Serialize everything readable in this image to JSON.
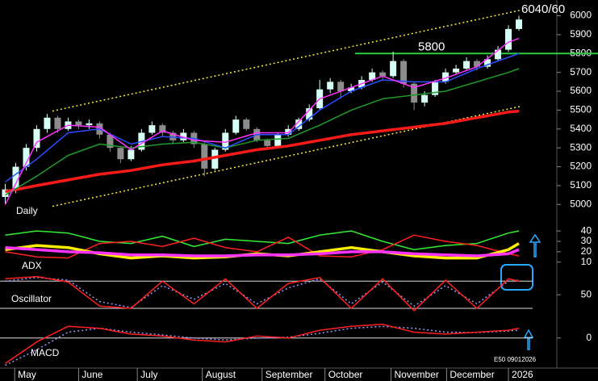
{
  "chart_data": [
    {
      "type": "candlestick",
      "label": "Daily",
      "annotation": "6040/60",
      "up_color": "#d6fff6",
      "down_color": "#8c8c8c",
      "xlim": [
        -0.5,
        50
      ],
      "ylim": [
        4950,
        6075
      ],
      "yticks": [
        5000,
        5100,
        5200,
        5300,
        5400,
        5500,
        5600,
        5700,
        5800,
        5900,
        6000
      ],
      "hline": {
        "value": 5800,
        "label": "5800",
        "color": "#2ecc40"
      },
      "ohlc": [
        [
          5040,
          5110,
          5000,
          5080
        ],
        [
          5080,
          5220,
          5060,
          5200
        ],
        [
          5200,
          5320,
          5180,
          5300
        ],
        [
          5300,
          5420,
          5280,
          5400
        ],
        [
          5400,
          5480,
          5380,
          5460
        ],
        [
          5460,
          5470,
          5380,
          5400
        ],
        [
          5400,
          5460,
          5390,
          5440
        ],
        [
          5440,
          5450,
          5400,
          5420
        ],
        [
          5420,
          5450,
          5400,
          5430
        ],
        [
          5430,
          5440,
          5350,
          5370
        ],
        [
          5370,
          5380,
          5280,
          5300
        ],
        [
          5300,
          5310,
          5220,
          5240
        ],
        [
          5240,
          5310,
          5230,
          5290
        ],
        [
          5290,
          5400,
          5280,
          5380
        ],
        [
          5380,
          5440,
          5370,
          5420
        ],
        [
          5420,
          5430,
          5360,
          5380
        ],
        [
          5380,
          5390,
          5320,
          5340
        ],
        [
          5340,
          5400,
          5330,
          5380
        ],
        [
          5380,
          5390,
          5300,
          5320
        ],
        [
          5320,
          5330,
          5150,
          5190
        ],
        [
          5190,
          5300,
          5180,
          5290
        ],
        [
          5290,
          5400,
          5280,
          5380
        ],
        [
          5380,
          5470,
          5370,
          5450
        ],
        [
          5450,
          5460,
          5390,
          5400
        ],
        [
          5400,
          5410,
          5330,
          5340
        ],
        [
          5340,
          5350,
          5290,
          5310
        ],
        [
          5310,
          5380,
          5300,
          5370
        ],
        [
          5370,
          5420,
          5360,
          5400
        ],
        [
          5400,
          5460,
          5390,
          5450
        ],
        [
          5450,
          5530,
          5440,
          5510
        ],
        [
          5510,
          5660,
          5500,
          5610
        ],
        [
          5610,
          5670,
          5590,
          5650
        ],
        [
          5650,
          5660,
          5560,
          5600
        ],
        [
          5600,
          5640,
          5590,
          5620
        ],
        [
          5620,
          5680,
          5610,
          5660
        ],
        [
          5660,
          5720,
          5650,
          5700
        ],
        [
          5700,
          5710,
          5660,
          5680
        ],
        [
          5680,
          5810,
          5670,
          5760
        ],
        [
          5760,
          5770,
          5620,
          5640
        ],
        [
          5640,
          5650,
          5500,
          5540
        ],
        [
          5540,
          5600,
          5520,
          5580
        ],
        [
          5580,
          5660,
          5570,
          5650
        ],
        [
          5650,
          5720,
          5640,
          5700
        ],
        [
          5700,
          5740,
          5690,
          5720
        ],
        [
          5720,
          5780,
          5710,
          5760
        ],
        [
          5760,
          5770,
          5710,
          5730
        ],
        [
          5730,
          5790,
          5720,
          5770
        ],
        [
          5770,
          5840,
          5760,
          5820
        ],
        [
          5820,
          5950,
          5810,
          5930
        ],
        [
          5930,
          6000,
          5920,
          5980
        ]
      ],
      "x": [
        0,
        3,
        6,
        9,
        12,
        15,
        18,
        21,
        24,
        27,
        30,
        33,
        36,
        39,
        42,
        45,
        48,
        49
      ],
      "series": [
        {
          "color": "#ffee33",
          "dashed": true,
          "x": [
            4.5,
            49.2
          ],
          "values": [
            5495,
            6030
          ]
        },
        {
          "color": "#ffee33",
          "dashed": true,
          "x": [
            4.5,
            49.2
          ],
          "values": [
            4990,
            5520
          ]
        },
        {
          "color": "#ff1a1a",
          "thick": true,
          "values": [
            5068,
            5100,
            5130,
            5160,
            5180,
            5210,
            5230,
            5260,
            5290,
            5310,
            5340,
            5370,
            5390,
            5410,
            5430,
            5460,
            5490,
            5495
          ]
        },
        {
          "color": "#1f9a2a",
          "values": [
            5050,
            5150,
            5260,
            5320,
            5300,
            5320,
            5330,
            5300,
            5340,
            5350,
            5420,
            5500,
            5560,
            5580,
            5600,
            5650,
            5700,
            5720
          ]
        },
        {
          "color": "#2a4dff",
          "values": [
            5120,
            5240,
            5380,
            5400,
            5320,
            5360,
            5350,
            5300,
            5370,
            5370,
            5500,
            5600,
            5660,
            5650,
            5650,
            5720,
            5780,
            5800
          ]
        },
        {
          "color": "#ff33ff",
          "values": [
            5000,
            5330,
            5420,
            5410,
            5290,
            5390,
            5340,
            5330,
            5380,
            5380,
            5560,
            5620,
            5680,
            5620,
            5670,
            5730,
            5860,
            5880
          ]
        }
      ]
    },
    {
      "type": "line",
      "label": "ADX",
      "xlim": [
        -0.5,
        50
      ],
      "ylim": [
        2,
        51
      ],
      "yticks": [
        10,
        20,
        30,
        40
      ],
      "x": [
        0,
        3,
        6,
        9,
        12,
        15,
        18,
        21,
        24,
        27,
        30,
        33,
        36,
        39,
        42,
        45,
        48,
        49
      ],
      "series": [
        {
          "color": "#33ee33",
          "values": [
            36,
            40,
            38,
            30,
            28,
            35,
            25,
            32,
            30,
            28,
            36,
            40,
            30,
            22,
            26,
            28,
            38,
            40
          ]
        },
        {
          "color": "#ff2020",
          "values": [
            20,
            15,
            14,
            28,
            30,
            25,
            33,
            24,
            20,
            34,
            16,
            15,
            22,
            36,
            30,
            26,
            18,
            16
          ]
        },
        {
          "color": "#ffee00",
          "thick": true,
          "values": [
            22,
            26,
            24,
            18,
            14,
            16,
            14,
            15,
            18,
            16,
            20,
            24,
            20,
            16,
            14,
            14,
            22,
            28
          ]
        },
        {
          "color": "#ff33ff",
          "thick": true,
          "values": [
            24,
            22,
            20,
            19,
            17,
            17,
            16,
            16,
            17,
            17,
            18,
            20,
            20,
            18,
            17,
            16,
            18,
            22
          ]
        }
      ]
    },
    {
      "type": "line",
      "label": "Oscillator",
      "xlim": [
        -0.5,
        50
      ],
      "ylim": [
        -3,
        100
      ],
      "yticks": [
        50
      ],
      "levels": [
        20,
        80
      ],
      "x": [
        0,
        3,
        6,
        9,
        12,
        15,
        18,
        21,
        24,
        27,
        30,
        33,
        36,
        39,
        42,
        45,
        48,
        49
      ],
      "series": [
        {
          "color": "#9999ff",
          "dashed": true,
          "values": [
            80,
            88,
            82,
            35,
            22,
            70,
            40,
            75,
            30,
            65,
            85,
            30,
            78,
            25,
            70,
            30,
            80,
            82
          ]
        },
        {
          "color": "#ff2020",
          "values": [
            85,
            90,
            78,
            25,
            20,
            80,
            30,
            85,
            20,
            75,
            88,
            20,
            85,
            15,
            82,
            20,
            85,
            80
          ]
        }
      ]
    },
    {
      "type": "line",
      "label": "MACD",
      "note": "E50 09012026",
      "xlim": [
        -0.5,
        50
      ],
      "ylim": [
        -75,
        45
      ],
      "yticks": [
        0
      ],
      "levels": [
        0
      ],
      "xticks": [
        {
          "value": 0.9,
          "label": "May"
        },
        {
          "value": 7,
          "label": "June"
        },
        {
          "value": 12.6,
          "label": "July"
        },
        {
          "value": 18.8,
          "label": "August"
        },
        {
          "value": 24.5,
          "label": "September"
        },
        {
          "value": 30.5,
          "label": "October"
        },
        {
          "value": 36.8,
          "label": "November"
        },
        {
          "value": 42.1,
          "label": "December"
        },
        {
          "value": 48,
          "label": "2026"
        }
      ],
      "x": [
        0,
        3,
        6,
        9,
        12,
        15,
        18,
        21,
        24,
        27,
        30,
        33,
        36,
        39,
        42,
        45,
        48,
        49
      ],
      "series": [
        {
          "color": "#9999ff",
          "dashed": true,
          "values": [
            -70,
            -30,
            15,
            25,
            15,
            8,
            0,
            -5,
            0,
            2,
            12,
            25,
            30,
            25,
            15,
            14,
            18,
            20
          ]
        },
        {
          "color": "#ff2020",
          "values": [
            -65,
            -10,
            30,
            25,
            10,
            5,
            -5,
            -10,
            5,
            0,
            20,
            30,
            35,
            15,
            10,
            15,
            20,
            25
          ]
        }
      ]
    }
  ]
}
